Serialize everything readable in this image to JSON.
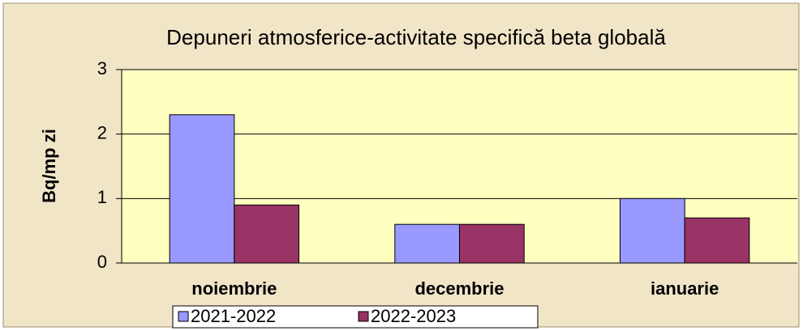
{
  "chart_data": {
    "type": "bar",
    "title": "Depuneri atmosferice-activitate specifică beta globală",
    "y_label": "Bq/mp zi",
    "categories": [
      "noiembrie",
      "decembrie",
      "ianuarie"
    ],
    "series": [
      {
        "name": "2021-2022",
        "color": "#9999ff",
        "values": [
          2.3,
          0.6,
          1.0
        ]
      },
      {
        "name": "2022-2023",
        "color": "#993366",
        "values": [
          0.9,
          0.6,
          0.7
        ]
      }
    ],
    "ylim": [
      0,
      3
    ],
    "yticks": [
      0,
      1,
      2,
      3
    ],
    "grid": true,
    "legend": "bottom"
  }
}
